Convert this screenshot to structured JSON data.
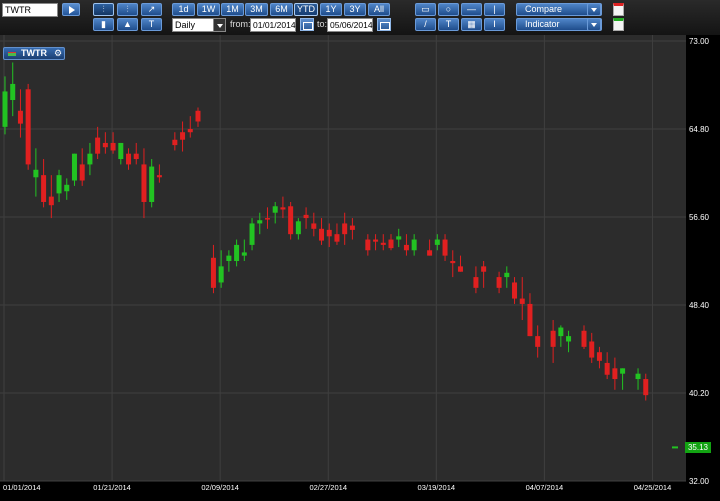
{
  "toolbar": {
    "symbol_value": "TWTR",
    "interval_value": "Daily",
    "from_label": "from:",
    "from_value": "01/01/2014",
    "to_label": "to:",
    "to_value": "05/06/2014",
    "periods": [
      "1d",
      "1W",
      "1M",
      "3M",
      "6M",
      "YTD",
      "1Y",
      "3Y",
      "All"
    ],
    "selected_period": "YTD",
    "compare_label": "Compare",
    "indicator_label": "Indicator",
    "tool_icons": [
      "rectangle-icon",
      "circle-icon",
      "horizontal-line-icon",
      "vertical-line-icon",
      "trend-line-icon",
      "text-tool-icon",
      "grid-icon",
      "text-bracket-icon"
    ],
    "tool_glyphs": [
      "▭",
      "○",
      "—",
      "|",
      "/",
      "T",
      "▦",
      "Ⅰ"
    ],
    "chart_type_icons": [
      "candlestick-icon",
      "ohlc-bar-icon",
      "line-chart-icon",
      "volume-bars-icon",
      "area-chart-icon",
      "text-annotation-icon"
    ],
    "chart_type_glyphs": [
      "⫶",
      "⫶",
      "↗",
      "▮",
      "▲",
      "T"
    ]
  },
  "legend": {
    "symbol": "TWTR"
  },
  "last_price_label": "35.13",
  "chart_data": {
    "type": "candlestick",
    "symbol": "TWTR",
    "y_ticks": [
      "73.00",
      "64.80",
      "56.60",
      "48.40",
      "40.20",
      "32.00"
    ],
    "ylim": [
      32.0,
      73.0
    ],
    "x_tick_labels": [
      "01/01/2014",
      "01/21/2014",
      "02/09/2014",
      "02/27/2014",
      "03/19/2014",
      "04/07/2014",
      "04/25/2014"
    ],
    "x_tick_index": [
      0,
      14,
      28,
      42,
      56,
      70,
      84
    ],
    "up_color": "#22c322",
    "down_color": "#e12020",
    "last_price": 35.13,
    "candles": [
      [
        65.0,
        69.7,
        64.3,
        68.3
      ],
      [
        67.5,
        71.0,
        66.0,
        69.0
      ],
      [
        66.5,
        68.5,
        64.0,
        65.3
      ],
      [
        68.5,
        69.0,
        61.0,
        61.5
      ],
      [
        60.3,
        63.0,
        58.5,
        61.0
      ],
      [
        60.5,
        62.0,
        57.5,
        58.0
      ],
      [
        58.5,
        60.5,
        56.5,
        57.7
      ],
      [
        58.8,
        61.0,
        58.0,
        60.5
      ],
      [
        59.0,
        60.2,
        58.2,
        59.6
      ],
      [
        60.0,
        62.5,
        59.5,
        62.5
      ],
      [
        61.5,
        63.0,
        59.5,
        60.0
      ],
      [
        61.5,
        63.5,
        60.5,
        62.5
      ],
      [
        64.0,
        65.0,
        62.0,
        62.5
      ],
      [
        63.5,
        64.5,
        62.5,
        63.1
      ],
      [
        63.5,
        64.5,
        62.5,
        62.8
      ],
      [
        62.0,
        63.5,
        61.5,
        63.5
      ],
      [
        62.5,
        63.0,
        61.0,
        61.5
      ],
      [
        62.5,
        63.5,
        61.5,
        62.0
      ],
      [
        61.5,
        63.0,
        56.5,
        58.0
      ],
      [
        58.0,
        62.0,
        57.5,
        61.3
      ],
      [
        60.5,
        61.5,
        59.8,
        60.3
      ],
      [
        null,
        null,
        null,
        null
      ],
      [
        63.8,
        64.5,
        62.8,
        63.3
      ],
      [
        64.5,
        65.5,
        62.7,
        63.8
      ],
      [
        64.8,
        66.0,
        64.0,
        64.5
      ],
      [
        66.5,
        66.8,
        65.0,
        65.5
      ],
      [
        null,
        null,
        null,
        null
      ],
      [
        52.8,
        54.0,
        49.5,
        50.0
      ],
      [
        50.5,
        53.5,
        50.0,
        52.0
      ],
      [
        52.5,
        53.5,
        51.5,
        53.0
      ],
      [
        52.5,
        54.5,
        52.0,
        54.0
      ],
      [
        53.0,
        54.5,
        52.5,
        53.3
      ],
      [
        54.0,
        56.5,
        53.5,
        56.0
      ],
      [
        56.0,
        57.0,
        55.0,
        56.3
      ],
      [
        56.5,
        57.5,
        55.5,
        56.4
      ],
      [
        57.0,
        58.0,
        56.0,
        57.6
      ],
      [
        57.5,
        58.5,
        56.5,
        57.3
      ],
      [
        57.6,
        58.0,
        54.5,
        55.0
      ],
      [
        55.0,
        56.5,
        54.5,
        56.2
      ],
      [
        56.8,
        57.5,
        55.5,
        56.5
      ],
      [
        56.0,
        57.0,
        54.8,
        55.5
      ],
      [
        55.5,
        56.5,
        54.0,
        54.4
      ],
      [
        55.4,
        56.0,
        53.8,
        54.8
      ],
      [
        55.0,
        56.0,
        54.0,
        54.3
      ],
      [
        56.0,
        57.0,
        54.0,
        55.0
      ],
      [
        55.8,
        56.5,
        54.5,
        55.4
      ],
      [
        null,
        null,
        null,
        null
      ],
      [
        54.5,
        55.0,
        53.0,
        53.5
      ],
      [
        54.5,
        55.0,
        53.5,
        54.3
      ],
      [
        54.2,
        55.0,
        53.5,
        54.0
      ],
      [
        54.5,
        55.0,
        53.5,
        53.7
      ],
      [
        54.5,
        55.5,
        53.8,
        54.8
      ],
      [
        54.0,
        55.0,
        53.0,
        53.5
      ],
      [
        53.5,
        55.0,
        53.0,
        54.5
      ],
      [
        null,
        null,
        null,
        null
      ],
      [
        53.5,
        54.5,
        53.0,
        53.0
      ],
      [
        54.0,
        55.0,
        53.5,
        54.5
      ],
      [
        54.5,
        55.0,
        52.5,
        53.0
      ],
      [
        52.5,
        53.5,
        51.0,
        52.3
      ],
      [
        52.0,
        53.0,
        51.5,
        51.5
      ],
      [
        null,
        null,
        null,
        null
      ],
      [
        51.0,
        52.0,
        49.5,
        50.0
      ],
      [
        52.0,
        52.5,
        50.0,
        51.5
      ],
      [
        null,
        null,
        null,
        null
      ],
      [
        51.0,
        51.5,
        49.5,
        50.0
      ],
      [
        51.0,
        52.0,
        50.0,
        51.4
      ],
      [
        50.5,
        51.0,
        48.5,
        49.0
      ],
      [
        49.0,
        51.0,
        47.0,
        48.5
      ],
      [
        48.5,
        49.5,
        45.5,
        45.5
      ],
      [
        45.5,
        46.5,
        43.5,
        44.5
      ],
      [
        null,
        null,
        null,
        null
      ],
      [
        46.0,
        47.0,
        43.0,
        44.5
      ],
      [
        45.5,
        46.5,
        44.5,
        46.3
      ],
      [
        45.0,
        46.0,
        44.0,
        45.5
      ],
      [
        null,
        null,
        null,
        null
      ],
      [
        46.0,
        46.5,
        44.3,
        44.5
      ],
      [
        45.0,
        45.8,
        43.0,
        43.5
      ],
      [
        44.0,
        44.5,
        42.5,
        43.2
      ],
      [
        43.0,
        44.0,
        41.5,
        41.9
      ],
      [
        42.5,
        43.5,
        40.5,
        41.5
      ],
      [
        42.0,
        42.5,
        40.5,
        42.5
      ],
      [
        null,
        null,
        null,
        null
      ],
      [
        41.5,
        42.5,
        40.5,
        42.0
      ],
      [
        41.5,
        42.0,
        39.5,
        40.0
      ]
    ]
  }
}
